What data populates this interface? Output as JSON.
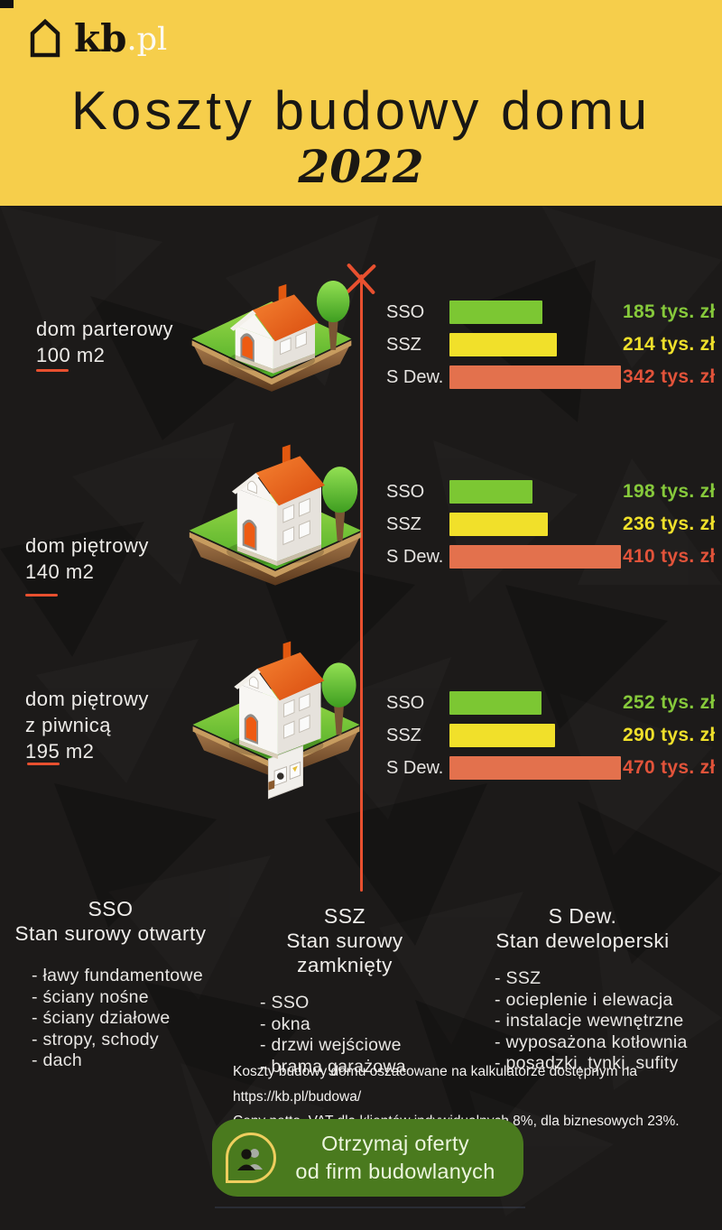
{
  "header": {
    "logo_text": "kb",
    "logo_suffix": ".pl",
    "title": "Koszty budowy domu",
    "year": "2022"
  },
  "colors": {
    "header_bg": "#F6CE4B",
    "background": "#1C1A19",
    "accent": "#E8502F",
    "bar_colors": [
      "#7CC733",
      "#F1E02A",
      "#E3714D"
    ],
    "value_colors": [
      "#86C93B",
      "#EFE02B",
      "#E2533A"
    ],
    "cta_bg": "#4A7A1E",
    "cta_icon_outline": "#EFCE5E"
  },
  "chart_data": [
    {
      "type": "bar",
      "house": [
        "dom parterowy",
        "100 m2"
      ],
      "categories": [
        "SSO",
        "SSZ",
        "S Dew."
      ],
      "values": [
        185,
        214,
        342
      ],
      "value_labels": [
        "185 tys. zł",
        "214 tys. zł",
        "342 tys. zł"
      ],
      "unit": "tys. zł",
      "legend_position": "left-of-bars",
      "grid": false
    },
    {
      "type": "bar",
      "house": [
        "dom piętrowy",
        "140 m2"
      ],
      "categories": [
        "SSO",
        "SSZ",
        "S Dew."
      ],
      "values": [
        198,
        236,
        410
      ],
      "value_labels": [
        "198 tys. zł",
        "236 tys. zł",
        "410 tys. zł"
      ],
      "unit": "tys. zł",
      "legend_position": "left-of-bars",
      "grid": false
    },
    {
      "type": "bar",
      "house": [
        "dom piętrowy",
        "z piwnicą",
        "195 m2"
      ],
      "categories": [
        "SSO",
        "SSZ",
        "S Dew."
      ],
      "values": [
        252,
        290,
        470
      ],
      "value_labels": [
        "252 tys. zł",
        "290 tys. zł",
        "470 tys. zł"
      ],
      "unit": "tys. zł",
      "legend_position": "left-of-bars",
      "grid": false
    }
  ],
  "legend": [
    {
      "abbr": "SSO",
      "title": "Stan surowy otwarty",
      "items": [
        "- ławy fundamentowe",
        "- ściany nośne",
        "- ściany działowe",
        "- stropy, schody",
        "- dach"
      ]
    },
    {
      "abbr": "SSZ",
      "title": "Stan surowy zamknięty",
      "items": [
        "- SSO",
        "- okna",
        "- drzwi wejściowe",
        "- brama garażowa"
      ]
    },
    {
      "abbr": "S Dew.",
      "title": "Stan deweloperski",
      "items": [
        "- SSZ",
        "- ocieplenie i elewacja",
        "- instalacje wewnętrzne",
        "- wyposażona kotłownia",
        "- posadzki, tynki, sufity"
      ]
    }
  ],
  "footnote": {
    "line1": "Koszty budowy domu oszacowane na kalkulatorze dostępnym na https://kb.pl/budowa/",
    "line2": "Ceny netto, VAT dla klientów indywidualnych 8%, dla biznesowych 23%."
  },
  "cta": {
    "line1": "Otrzymaj oferty",
    "line2": "od firm budowlanych"
  }
}
